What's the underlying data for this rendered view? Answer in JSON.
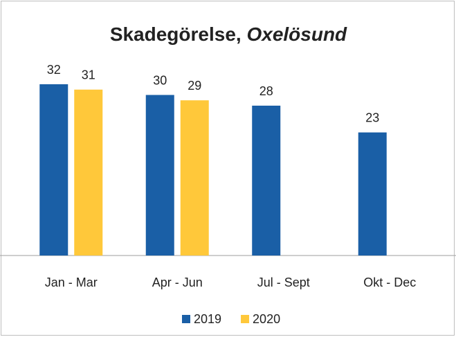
{
  "chart_data": {
    "type": "bar",
    "title": {
      "text": "Skadegörelse,",
      "italic": "Oxelösund"
    },
    "categories": [
      "Jan - Mar",
      "Apr - Jun",
      "Jul - Sept",
      "Okt - Dec"
    ],
    "series": [
      {
        "name": "2019",
        "color": "#1a5fa6",
        "values": [
          32,
          30,
          28,
          23
        ]
      },
      {
        "name": "2020",
        "color": "#ffc83a",
        "values": [
          31,
          29,
          null,
          null
        ]
      }
    ],
    "ylim": [
      0,
      40
    ]
  }
}
